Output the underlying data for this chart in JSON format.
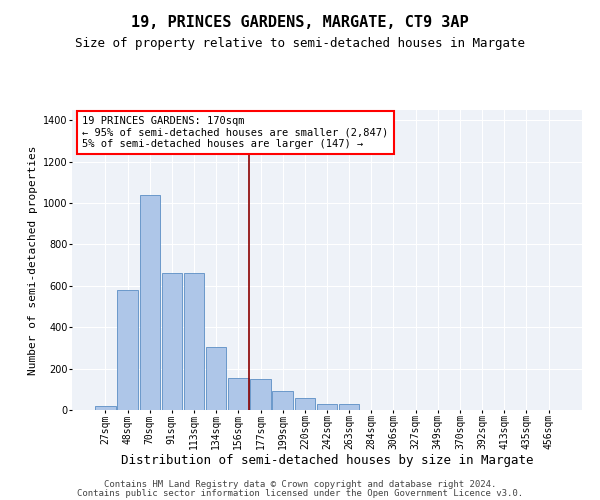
{
  "title": "19, PRINCES GARDENS, MARGATE, CT9 3AP",
  "subtitle": "Size of property relative to semi-detached houses in Margate",
  "xlabel": "Distribution of semi-detached houses by size in Margate",
  "ylabel": "Number of semi-detached properties",
  "categories": [
    "27sqm",
    "48sqm",
    "70sqm",
    "91sqm",
    "113sqm",
    "134sqm",
    "156sqm",
    "177sqm",
    "199sqm",
    "220sqm",
    "242sqm",
    "263sqm",
    "284sqm",
    "306sqm",
    "327sqm",
    "349sqm",
    "370sqm",
    "392sqm",
    "413sqm",
    "435sqm",
    "456sqm"
  ],
  "values": [
    20,
    580,
    1040,
    660,
    660,
    305,
    155,
    150,
    90,
    60,
    30,
    30,
    0,
    0,
    0,
    0,
    0,
    0,
    0,
    0,
    0
  ],
  "bar_color": "#aec6e8",
  "bar_edge_color": "#5b8ec4",
  "vline_index": 7,
  "vline_color": "#8b0000",
  "annotation_title": "19 PRINCES GARDENS: 170sqm",
  "annotation_line1": "← 95% of semi-detached houses are smaller (2,847)",
  "annotation_line2": "5% of semi-detached houses are larger (147) →",
  "ylim": [
    0,
    1450
  ],
  "yticks": [
    0,
    200,
    400,
    600,
    800,
    1000,
    1200,
    1400
  ],
  "footer1": "Contains HM Land Registry data © Crown copyright and database right 2024.",
  "footer2": "Contains public sector information licensed under the Open Government Licence v3.0.",
  "bg_color": "#eef2f8",
  "grid_color": "#ffffff",
  "title_fontsize": 11,
  "subtitle_fontsize": 9,
  "xlabel_fontsize": 9,
  "ylabel_fontsize": 8,
  "tick_fontsize": 7,
  "annot_fontsize": 7.5,
  "footer_fontsize": 6.5
}
